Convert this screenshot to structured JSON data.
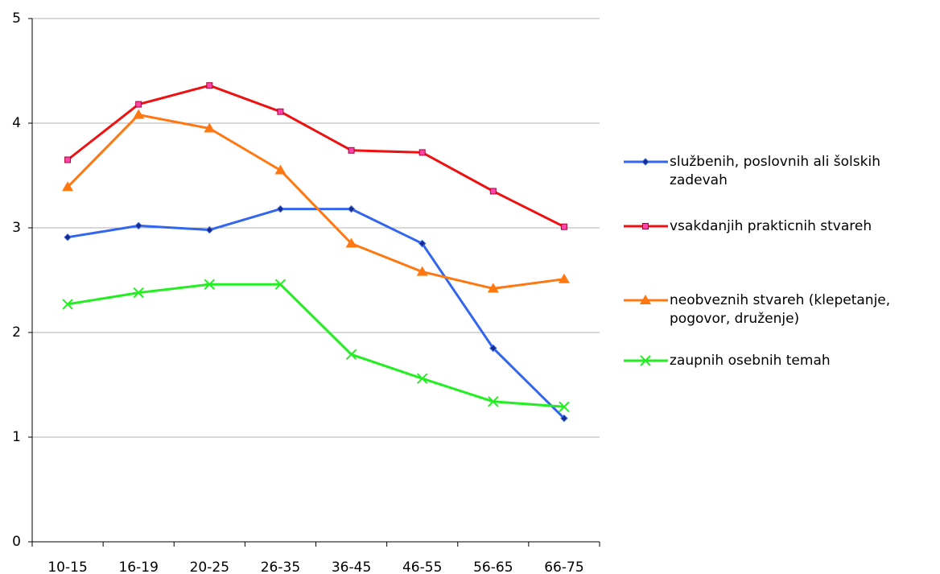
{
  "chart_data": {
    "type": "line",
    "categories": [
      "10-15",
      "16-19",
      "20-25",
      "26-35",
      "36-45",
      "46-55",
      "56-65",
      "66-75"
    ],
    "series": [
      {
        "name": "službenih, poslovnih ali šolskih zadevah",
        "color": "#3366ee",
        "marker": "diamond",
        "values": [
          2.91,
          3.02,
          2.98,
          3.18,
          3.18,
          2.85,
          1.85,
          1.18
        ]
      },
      {
        "name": "vsakdanjih prakticnih stvareh",
        "color": "#ee1111",
        "marker": "square",
        "values": [
          3.65,
          4.18,
          4.36,
          4.11,
          3.74,
          3.72,
          3.35,
          3.01
        ]
      },
      {
        "name": "neobveznih stvareh (klepetanje, pogovor, druženje)",
        "color": "#ff7711",
        "marker": "triangle",
        "values": [
          3.39,
          4.08,
          3.95,
          3.55,
          2.85,
          2.58,
          2.42,
          2.51
        ]
      },
      {
        "name": "zaupnih osebnih temah",
        "color": "#22ee22",
        "marker": "x",
        "values": [
          2.27,
          2.38,
          2.46,
          2.46,
          1.79,
          1.56,
          1.34,
          1.29
        ]
      }
    ],
    "ylim": [
      0,
      5
    ],
    "yticks": [
      0,
      1,
      2,
      3,
      4,
      5
    ],
    "grid": true,
    "legend": "right"
  }
}
